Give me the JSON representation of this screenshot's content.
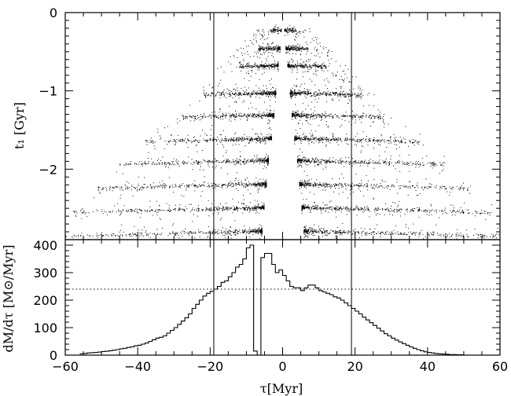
{
  "chart_data": [
    {
      "type": "scatter",
      "title": "",
      "ylabel": "t₁ [Gyr]",
      "xlabel": "",
      "xlim": [
        -60,
        60
      ],
      "ylim": [
        -2.9,
        0
      ],
      "ytick_labels": [
        "0",
        "−1",
        "−2"
      ],
      "yticks": [
        0,
        -1,
        -2
      ],
      "vertical_lines_x": [
        -19,
        19
      ],
      "point_color": "#000000",
      "bands": [
        {
          "t": -0.22,
          "inner": 0.4,
          "outer": 3.5,
          "n": 70,
          "falloff": 1.3
        },
        {
          "t": -0.45,
          "inner": 0.8,
          "outer": 7,
          "n": 160,
          "falloff": 1.6
        },
        {
          "t": -0.67,
          "inner": 1.3,
          "outer": 12,
          "n": 240,
          "falloff": 1.8
        },
        {
          "t": -1.02,
          "inner": 2.0,
          "outer": 22,
          "n": 320,
          "falloff": 1.9
        },
        {
          "t": -1.3,
          "inner": 2.5,
          "outer": 28,
          "n": 320,
          "falloff": 2.0
        },
        {
          "t": -1.6,
          "inner": 3.2,
          "outer": 38,
          "n": 360,
          "falloff": 2.0
        },
        {
          "t": -1.88,
          "inner": 4.0,
          "outer": 45,
          "n": 380,
          "falloff": 2.0
        },
        {
          "t": -2.18,
          "inner": 4.6,
          "outer": 52,
          "n": 380,
          "falloff": 2.1
        },
        {
          "t": -2.48,
          "inner": 5.2,
          "outer": 58,
          "n": 420,
          "falloff": 2.1
        },
        {
          "t": -2.78,
          "inner": 5.8,
          "outer": 60,
          "n": 400,
          "falloff": 2.2
        }
      ]
    },
    {
      "type": "bar",
      "title": "",
      "xlabel": "τ[Myr]",
      "ylabel": "dM/dτ [M⊙/Myr]",
      "xlim": [
        -60,
        60
      ],
      "ylim": [
        0,
        420
      ],
      "xticks": [
        -60,
        -40,
        -20,
        0,
        20,
        40,
        60
      ],
      "xtick_labels": [
        "−60",
        "−40",
        "−20",
        "0",
        "20",
        "40",
        "60"
      ],
      "yticks": [
        0,
        100,
        200,
        300,
        400
      ],
      "ytick_labels": [
        "0",
        "100",
        "200",
        "300",
        "400"
      ],
      "horizontal_line_y": 240,
      "vertical_lines_x": [
        -19,
        19
      ],
      "bin_edges_start": -56,
      "bin_width": 1,
      "values": [
        5,
        6,
        8,
        9,
        10,
        11,
        13,
        14,
        16,
        18,
        20,
        23,
        25,
        28,
        30,
        34,
        36,
        40,
        44,
        50,
        56,
        62,
        65,
        70,
        80,
        90,
        100,
        112,
        124,
        136,
        150,
        170,
        185,
        200,
        215,
        225,
        232,
        240,
        250,
        265,
        270,
        285,
        300,
        320,
        330,
        350,
        390,
        400,
        15,
        0,
        355,
        370,
        370,
        330,
        300,
        310,
        290,
        270,
        250,
        245,
        245,
        235,
        245,
        255,
        255,
        245,
        235,
        230,
        225,
        220,
        212,
        208,
        200,
        190,
        180,
        170,
        160,
        150,
        138,
        128,
        118,
        108,
        98,
        88,
        78,
        70,
        62,
        55,
        48,
        42,
        36,
        30,
        25,
        20,
        16,
        12,
        10,
        8,
        6,
        5,
        4,
        3,
        2,
        2,
        1,
        1,
        0,
        0,
        0,
        0,
        0,
        0
      ]
    }
  ]
}
